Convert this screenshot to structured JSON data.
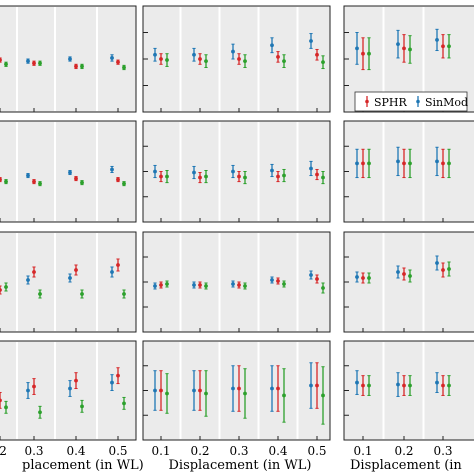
{
  "legend": {
    "position": "panel row 1, column 3, bottom",
    "entries": [
      {
        "label": "SPHR",
        "color": "#d62728"
      },
      {
        "label": "SinMod",
        "color": "#1f77b4"
      }
    ]
  },
  "colors": {
    "blue": "#1f77b4",
    "red": "#d62728",
    "green": "#2ca02c",
    "panel_background": "#ebebeb",
    "separator": "#ffffff"
  },
  "xlabels": [
    "placement (in WL)",
    "Displacement (in WL)",
    "Displacement (in"
  ],
  "column_ticks": [
    [
      "2",
      "0.3",
      "0.4",
      "0.5"
    ],
    [
      "0.1",
      "0.2",
      "0.3",
      "0.4",
      "0.5"
    ],
    [
      "0.1",
      "0.2",
      "0.3"
    ]
  ],
  "chart_data": {
    "type": "scatter",
    "description_of_grid": "4 rows x 3 columns of error-bar panels (partially cropped); each group has three markers: blue, red, green",
    "ylim": [
      0,
      100
    ],
    "panels": [
      {
        "row": 0,
        "col": 0,
        "x": [
          "0.2",
          "0.3",
          "0.4",
          "0.5"
        ],
        "blue": [
          [
            54,
            52,
            56
          ],
          [
            52,
            50,
            54
          ],
          [
            50,
            48,
            52
          ],
          [
            49,
            46,
            52
          ]
        ],
        "red": [
          [
            51,
            49,
            53
          ],
          [
            54,
            52,
            56
          ],
          [
            57,
            55,
            59
          ],
          [
            53,
            51,
            55
          ]
        ],
        "green": [
          [
            55,
            53,
            57
          ],
          [
            54,
            52,
            56
          ],
          [
            57,
            55,
            59
          ],
          [
            58,
            56,
            60
          ]
        ]
      },
      {
        "row": 0,
        "col": 1,
        "x": [
          "0.1",
          "0.2",
          "0.3",
          "0.4",
          "0.5"
        ],
        "blue": [
          [
            46,
            40,
            52
          ],
          [
            46,
            40,
            52
          ],
          [
            43,
            36,
            50
          ],
          [
            37,
            30,
            44
          ],
          [
            33,
            26,
            40
          ]
        ],
        "red": [
          [
            50,
            45,
            55
          ],
          [
            50,
            45,
            55
          ],
          [
            50,
            45,
            55
          ],
          [
            48,
            43,
            53
          ],
          [
            46,
            41,
            51
          ]
        ],
        "green": [
          [
            51,
            45,
            57
          ],
          [
            52,
            46,
            58
          ],
          [
            52,
            46,
            58
          ],
          [
            52,
            46,
            58
          ],
          [
            53,
            47,
            59
          ]
        ]
      },
      {
        "row": 0,
        "col": 2,
        "x": [
          "0.1",
          "0.2",
          "0.3"
        ],
        "blue": [
          [
            40,
            25,
            55
          ],
          [
            36,
            23,
            49
          ],
          [
            32,
            22,
            42
          ]
        ],
        "red": [
          [
            45,
            30,
            60
          ],
          [
            40,
            27,
            53
          ],
          [
            38,
            27,
            49
          ]
        ],
        "green": [
          [
            45,
            30,
            60
          ],
          [
            41,
            28,
            54
          ],
          [
            38,
            27,
            49
          ]
        ]
      },
      {
        "row": 1,
        "col": 0,
        "x": [
          "0.2",
          "0.3",
          "0.4",
          "0.5"
        ],
        "blue": [
          [
            56,
            54,
            58
          ],
          [
            54,
            52,
            56
          ],
          [
            51,
            49,
            53
          ],
          [
            48,
            45,
            51
          ]
        ],
        "red": [
          [
            58,
            56,
            60
          ],
          [
            60,
            58,
            62
          ],
          [
            57,
            55,
            59
          ],
          [
            58,
            56,
            60
          ]
        ],
        "green": [
          [
            60,
            58,
            62
          ],
          [
            62,
            60,
            64
          ],
          [
            61,
            59,
            63
          ],
          [
            62,
            60,
            64
          ]
        ]
      },
      {
        "row": 1,
        "col": 1,
        "x": [
          "0.1",
          "0.2",
          "0.3",
          "0.4",
          "0.5"
        ],
        "blue": [
          [
            50,
            44,
            56
          ],
          [
            51,
            45,
            57
          ],
          [
            50,
            44,
            56
          ],
          [
            49,
            43,
            55
          ],
          [
            47,
            40,
            54
          ]
        ],
        "red": [
          [
            55,
            50,
            60
          ],
          [
            56,
            51,
            61
          ],
          [
            55,
            50,
            60
          ],
          [
            55,
            50,
            60
          ],
          [
            53,
            48,
            58
          ]
        ],
        "green": [
          [
            55,
            49,
            61
          ],
          [
            55,
            49,
            61
          ],
          [
            56,
            50,
            62
          ],
          [
            54,
            48,
            60
          ],
          [
            56,
            50,
            62
          ]
        ]
      },
      {
        "row": 1,
        "col": 2,
        "x": [
          "0.1",
          "0.2",
          "0.3"
        ],
        "blue": [
          [
            42,
            28,
            56
          ],
          [
            40,
            26,
            54
          ],
          [
            40,
            26,
            54
          ]
        ],
        "red": [
          [
            42,
            28,
            56
          ],
          [
            42,
            28,
            56
          ],
          [
            42,
            28,
            56
          ]
        ],
        "green": [
          [
            42,
            28,
            56
          ],
          [
            42,
            28,
            56
          ],
          [
            42,
            28,
            56
          ]
        ]
      },
      {
        "row": 2,
        "col": 0,
        "x": [
          "0.2",
          "0.3",
          "0.4",
          "0.5"
        ],
        "blue": [
          [
            46,
            42,
            50
          ],
          [
            48,
            44,
            52
          ],
          [
            46,
            42,
            50
          ],
          [
            40,
            35,
            45
          ]
        ],
        "red": [
          [
            58,
            54,
            62
          ],
          [
            40,
            35,
            45
          ],
          [
            38,
            33,
            43
          ],
          [
            33,
            27,
            39
          ]
        ],
        "green": [
          [
            55,
            51,
            59
          ],
          [
            62,
            58,
            66
          ],
          [
            62,
            58,
            66
          ],
          [
            62,
            58,
            66
          ]
        ]
      },
      {
        "row": 2,
        "col": 1,
        "x": [
          "0.1",
          "0.2",
          "0.3",
          "0.4",
          "0.5"
        ],
        "blue": [
          [
            54,
            51,
            57
          ],
          [
            53,
            50,
            56
          ],
          [
            52,
            49,
            55
          ],
          [
            48,
            45,
            51
          ],
          [
            43,
            39,
            47
          ]
        ],
        "red": [
          [
            53,
            50,
            56
          ],
          [
            53,
            50,
            56
          ],
          [
            53,
            50,
            56
          ],
          [
            49,
            46,
            52
          ],
          [
            47,
            43,
            51
          ]
        ],
        "green": [
          [
            52,
            49,
            55
          ],
          [
            54,
            51,
            57
          ],
          [
            54,
            51,
            57
          ],
          [
            52,
            49,
            55
          ],
          [
            56,
            51,
            61
          ]
        ]
      },
      {
        "row": 2,
        "col": 2,
        "x": [
          "0.1",
          "0.2",
          "0.3"
        ],
        "blue": [
          [
            45,
            40,
            50
          ],
          [
            40,
            34,
            46
          ],
          [
            31,
            24,
            38
          ]
        ],
        "red": [
          [
            46,
            41,
            51
          ],
          [
            42,
            36,
            48
          ],
          [
            38,
            31,
            45
          ]
        ],
        "green": [
          [
            46,
            41,
            51
          ],
          [
            44,
            38,
            50
          ],
          [
            37,
            30,
            44
          ]
        ]
      },
      {
        "row": 3,
        "col": 0,
        "x": [
          "0.2",
          "0.3",
          "0.4",
          "0.5"
        ],
        "blue": [
          [
            55,
            47,
            63
          ],
          [
            50,
            42,
            58
          ],
          [
            48,
            40,
            56
          ],
          [
            42,
            34,
            50
          ]
        ],
        "red": [
          [
            60,
            52,
            68
          ],
          [
            46,
            38,
            54
          ],
          [
            40,
            32,
            48
          ],
          [
            35,
            27,
            43
          ]
        ],
        "green": [
          [
            67,
            61,
            73
          ],
          [
            72,
            66,
            78
          ],
          [
            66,
            60,
            72
          ],
          [
            63,
            57,
            69
          ]
        ]
      },
      {
        "row": 3,
        "col": 1,
        "x": [
          "0.1",
          "0.2",
          "0.3",
          "0.4",
          "0.5"
        ],
        "blue": [
          [
            50,
            30,
            70
          ],
          [
            50,
            30,
            70
          ],
          [
            48,
            25,
            71
          ],
          [
            48,
            25,
            71
          ],
          [
            45,
            22,
            68
          ]
        ],
        "red": [
          [
            50,
            30,
            70
          ],
          [
            50,
            30,
            70
          ],
          [
            48,
            25,
            71
          ],
          [
            48,
            25,
            71
          ],
          [
            45,
            22,
            68
          ]
        ],
        "green": [
          [
            53,
            33,
            73
          ],
          [
            53,
            30,
            76
          ],
          [
            53,
            28,
            78
          ],
          [
            55,
            28,
            82
          ],
          [
            55,
            26,
            84
          ]
        ]
      },
      {
        "row": 3,
        "col": 2,
        "x": [
          "0.1",
          "0.2",
          "0.3"
        ],
        "blue": [
          [
            42,
            30,
            54
          ],
          [
            44,
            32,
            56
          ],
          [
            42,
            32,
            52
          ]
        ],
        "red": [
          [
            45,
            35,
            55
          ],
          [
            45,
            35,
            55
          ],
          [
            45,
            35,
            55
          ]
        ],
        "green": [
          [
            45,
            35,
            55
          ],
          [
            45,
            35,
            55
          ],
          [
            45,
            35,
            55
          ]
        ]
      }
    ]
  }
}
